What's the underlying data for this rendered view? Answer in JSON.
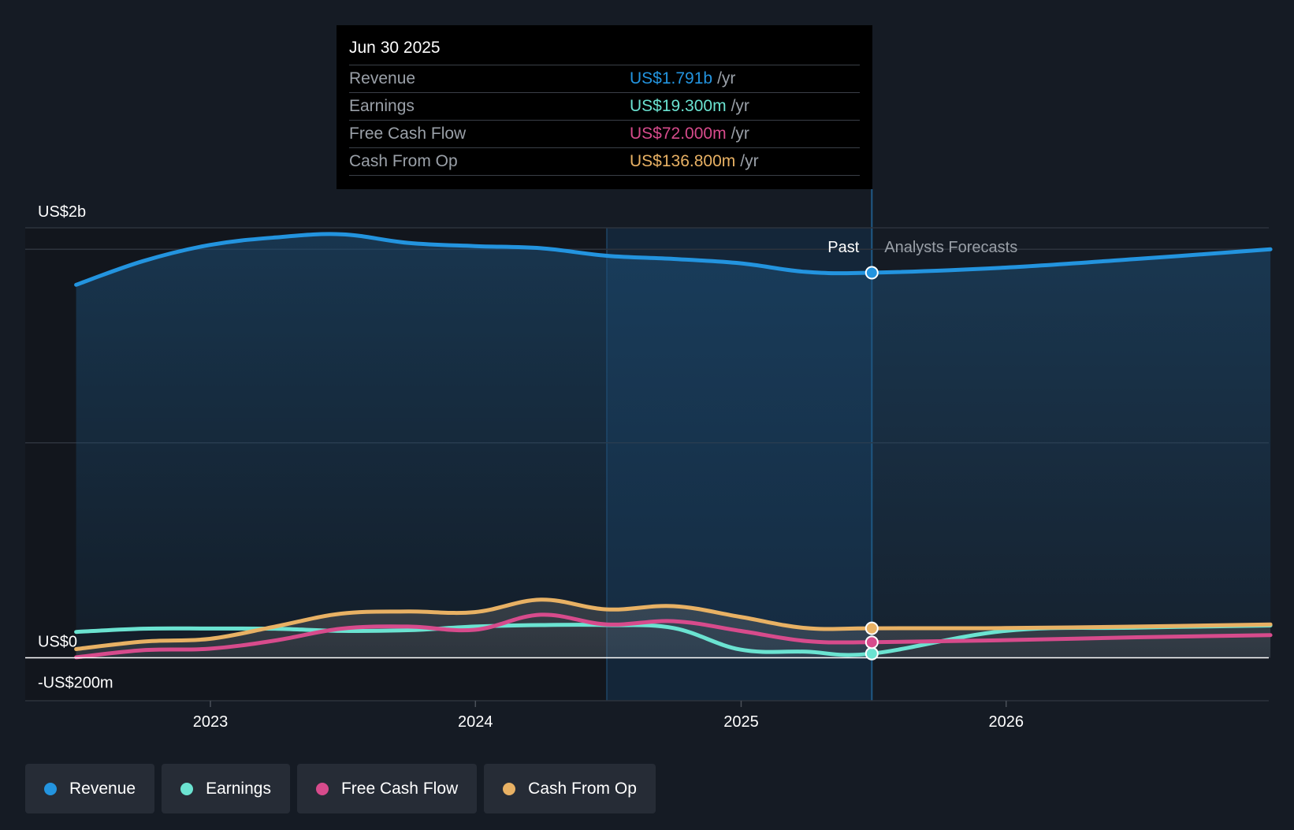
{
  "chart_data": {
    "type": "area",
    "x_axis_type": "date",
    "ylim": [
      -200,
      2000
    ],
    "y_unit": "US$ millions",
    "y_tick_labels": [
      {
        "value": 2000,
        "label": "US$2b"
      },
      {
        "value": 0,
        "label": "US$0"
      },
      {
        "value": -200,
        "label": "-US$200m"
      }
    ],
    "x_tick_labels": [
      {
        "date": "2023-01-01",
        "label": "2023"
      },
      {
        "date": "2024-01-01",
        "label": "2024"
      },
      {
        "date": "2025-01-01",
        "label": "2025"
      },
      {
        "date": "2026-01-01",
        "label": "2026"
      }
    ],
    "past_label": "Past",
    "forecast_label": "Analysts Forecasts",
    "highlight_range": [
      "2024-06-30",
      "2025-06-30"
    ],
    "series": [
      {
        "name": "Revenue",
        "color": "#2394df",
        "points": [
          [
            "2022-06-30",
            1735
          ],
          [
            "2022-09-30",
            1845
          ],
          [
            "2022-12-31",
            1920
          ],
          [
            "2023-03-31",
            1955
          ],
          [
            "2023-06-30",
            1970
          ],
          [
            "2023-09-30",
            1930
          ],
          [
            "2023-12-31",
            1915
          ],
          [
            "2024-03-31",
            1905
          ],
          [
            "2024-06-30",
            1870
          ],
          [
            "2024-09-30",
            1855
          ],
          [
            "2024-12-31",
            1835
          ],
          [
            "2025-03-31",
            1795
          ],
          [
            "2025-06-30",
            1791
          ],
          [
            "2025-12-31",
            1815
          ],
          [
            "2026-06-30",
            1855
          ],
          [
            "2026-12-31",
            1900
          ]
        ]
      },
      {
        "name": "Earnings",
        "color": "#6be3d1",
        "points": [
          [
            "2022-06-30",
            120
          ],
          [
            "2022-09-30",
            135
          ],
          [
            "2022-12-31",
            136
          ],
          [
            "2023-03-31",
            135
          ],
          [
            "2023-06-30",
            125
          ],
          [
            "2023-09-30",
            128
          ],
          [
            "2023-12-31",
            145
          ],
          [
            "2024-03-31",
            152
          ],
          [
            "2024-06-30",
            152
          ],
          [
            "2024-09-30",
            138
          ],
          [
            "2024-12-31",
            38
          ],
          [
            "2025-03-31",
            28
          ],
          [
            "2025-06-30",
            19.3
          ],
          [
            "2025-12-31",
            125
          ],
          [
            "2026-06-30",
            140
          ],
          [
            "2026-12-31",
            150
          ]
        ]
      },
      {
        "name": "Free Cash Flow",
        "color": "#d74b8c",
        "points": [
          [
            "2022-06-30",
            2
          ],
          [
            "2022-09-30",
            35
          ],
          [
            "2022-12-31",
            42
          ],
          [
            "2023-03-31",
            80
          ],
          [
            "2023-06-30",
            135
          ],
          [
            "2023-09-30",
            145
          ],
          [
            "2023-12-31",
            130
          ],
          [
            "2024-03-31",
            200
          ],
          [
            "2024-06-30",
            155
          ],
          [
            "2024-09-30",
            170
          ],
          [
            "2024-12-31",
            125
          ],
          [
            "2025-03-31",
            78
          ],
          [
            "2025-06-30",
            72
          ],
          [
            "2025-12-31",
            82
          ],
          [
            "2026-06-30",
            95
          ],
          [
            "2026-12-31",
            105
          ]
        ]
      },
      {
        "name": "Cash From Op",
        "color": "#e8b164",
        "points": [
          [
            "2022-06-30",
            40
          ],
          [
            "2022-09-30",
            75
          ],
          [
            "2022-12-31",
            88
          ],
          [
            "2023-03-31",
            145
          ],
          [
            "2023-06-30",
            205
          ],
          [
            "2023-09-30",
            215
          ],
          [
            "2023-12-31",
            212
          ],
          [
            "2024-03-31",
            270
          ],
          [
            "2024-06-30",
            225
          ],
          [
            "2024-09-30",
            240
          ],
          [
            "2024-12-31",
            190
          ],
          [
            "2025-03-31",
            138
          ],
          [
            "2025-06-30",
            136.8
          ],
          [
            "2025-12-31",
            138
          ],
          [
            "2026-06-30",
            145
          ],
          [
            "2026-12-31",
            155
          ]
        ]
      }
    ],
    "tooltip": {
      "date": "Jun 30 2025",
      "rows": [
        {
          "label": "Revenue",
          "value": "US$1.791b",
          "unit": "/yr",
          "color": "#2394df"
        },
        {
          "label": "Earnings",
          "value": "US$19.300m",
          "unit": "/yr",
          "color": "#6be3d1"
        },
        {
          "label": "Free Cash Flow",
          "value": "US$72.000m",
          "unit": "/yr",
          "color": "#d74b8c"
        },
        {
          "label": "Cash From Op",
          "value": "US$136.800m",
          "unit": "/yr",
          "color": "#e8b164"
        }
      ]
    },
    "legend": [
      {
        "label": "Revenue",
        "color": "#2394df"
      },
      {
        "label": "Earnings",
        "color": "#6be3d1"
      },
      {
        "label": "Free Cash Flow",
        "color": "#d74b8c"
      },
      {
        "label": "Cash From Op",
        "color": "#e8b164"
      }
    ]
  }
}
